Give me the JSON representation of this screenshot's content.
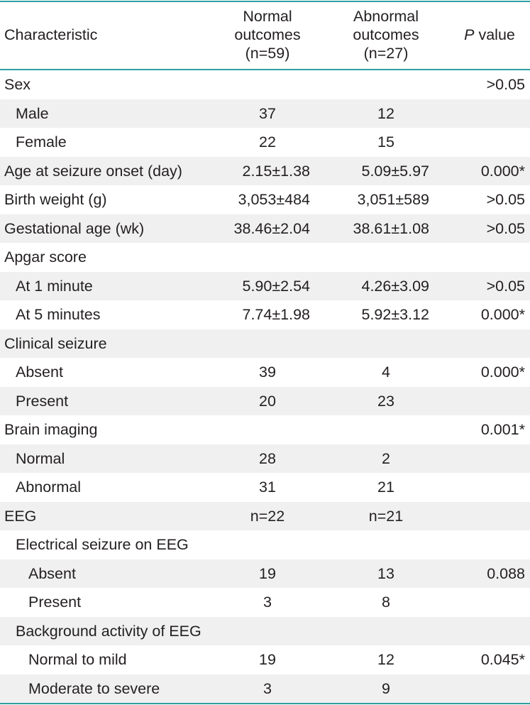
{
  "header": {
    "characteristic": "Characteristic",
    "normal_line1": "Normal",
    "normal_line2": "outcomes",
    "normal_line3": "(n=59)",
    "abnormal_line1": "Abnormal",
    "abnormal_line2": "outcomes",
    "abnormal_line3": "(n=27)",
    "p_italic": "P",
    "p_rest": " value"
  },
  "rows": [
    {
      "label": "Sex",
      "indent": 0,
      "shade": false,
      "normal": "",
      "abnormal": "",
      "p": ">0.05"
    },
    {
      "label": "Male",
      "indent": 1,
      "shade": true,
      "normal": "37",
      "abnormal": "12",
      "p": ""
    },
    {
      "label": "Female",
      "indent": 1,
      "shade": false,
      "normal": "22",
      "abnormal": "15",
      "p": ""
    },
    {
      "label": "Age at seizure onset (day)",
      "indent": 0,
      "shade": true,
      "normal": "2.15±1.38",
      "abnormal": "5.09±5.97",
      "p": "0.000*"
    },
    {
      "label": "Birth weight (g)",
      "indent": 0,
      "shade": false,
      "normal": "3,053±484",
      "abnormal": "3,051±589",
      "p": ">0.05"
    },
    {
      "label": "Gestational age (wk)",
      "indent": 0,
      "shade": true,
      "normal": "38.46±2.04",
      "abnormal": "38.61±1.08",
      "p": ">0.05"
    },
    {
      "label": "Apgar score",
      "indent": 0,
      "shade": false,
      "normal": "",
      "abnormal": "",
      "p": ""
    },
    {
      "label": "At 1 minute",
      "indent": 1,
      "shade": true,
      "normal": "5.90±2.54",
      "abnormal": "4.26±3.09",
      "p": ">0.05"
    },
    {
      "label": "At 5 minutes",
      "indent": 1,
      "shade": false,
      "normal": "7.74±1.98",
      "abnormal": "5.92±3.12",
      "p": "0.000*"
    },
    {
      "label": "Clinical seizure",
      "indent": 0,
      "shade": true,
      "normal": "",
      "abnormal": "",
      "p": ""
    },
    {
      "label": "Absent",
      "indent": 1,
      "shade": false,
      "normal": "39",
      "abnormal": "4",
      "p": "0.000*"
    },
    {
      "label": "Present",
      "indent": 1,
      "shade": true,
      "normal": "20",
      "abnormal": "23",
      "p": ""
    },
    {
      "label": "Brain imaging",
      "indent": 0,
      "shade": false,
      "normal": "",
      "abnormal": "",
      "p": "0.001*"
    },
    {
      "label": "Normal",
      "indent": 1,
      "shade": true,
      "normal": "28",
      "abnormal": "2",
      "p": ""
    },
    {
      "label": "Abnormal",
      "indent": 1,
      "shade": false,
      "normal": "31",
      "abnormal": "21",
      "p": ""
    },
    {
      "label": "EEG",
      "indent": 0,
      "shade": true,
      "normal": "n=22",
      "abnormal": "n=21",
      "p": ""
    },
    {
      "label": "Electrical seizure on EEG",
      "indent": 1,
      "shade": false,
      "normal": "",
      "abnormal": "",
      "p": ""
    },
    {
      "label": "Absent",
      "indent": 2,
      "shade": true,
      "normal": "19",
      "abnormal": "13",
      "p": "0.088"
    },
    {
      "label": "Present",
      "indent": 2,
      "shade": false,
      "normal": "3",
      "abnormal": "8",
      "p": ""
    },
    {
      "label": "Background activity of EEG",
      "indent": 1,
      "shade": true,
      "normal": "",
      "abnormal": "",
      "p": ""
    },
    {
      "label": "Normal to mild",
      "indent": 2,
      "shade": false,
      "normal": "19",
      "abnormal": "12",
      "p": "0.045*"
    },
    {
      "label": "Moderate to severe",
      "indent": 2,
      "shade": true,
      "normal": "3",
      "abnormal": "9",
      "p": ""
    }
  ],
  "colors": {
    "rule": "#2e9fa3",
    "shade": "#f0f0f1",
    "text": "#231f20"
  }
}
